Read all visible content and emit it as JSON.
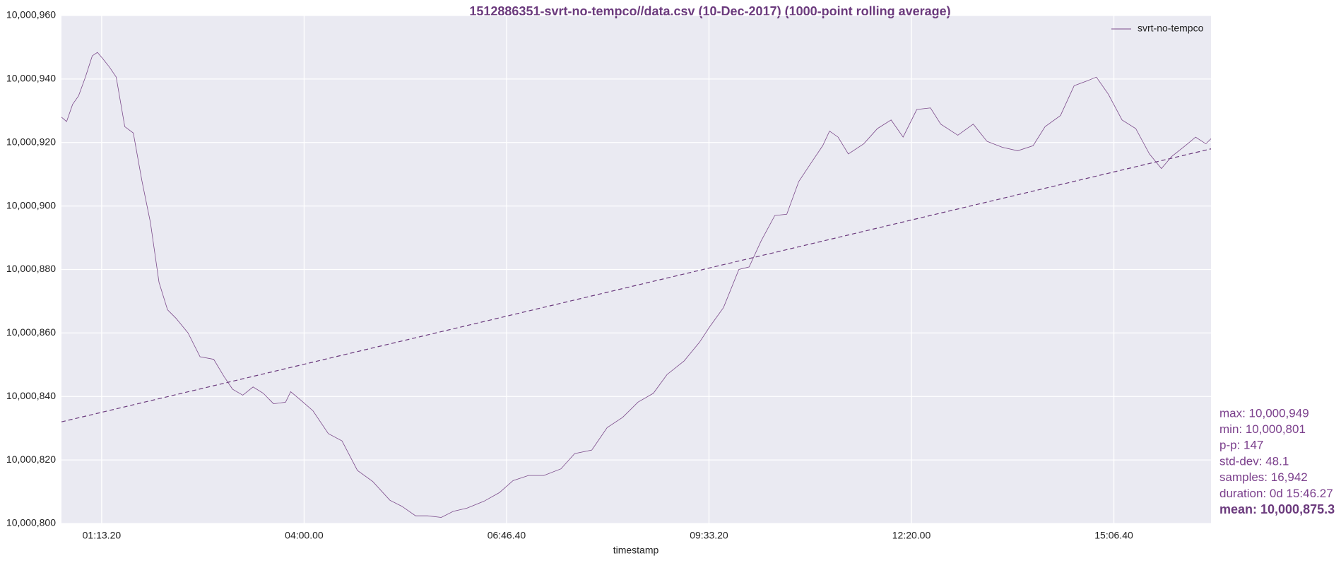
{
  "chart_data": {
    "type": "line",
    "title": "1512886351-svrt-no-tempco//data.csv (10-Dec-2017) (1000-point rolling average)",
    "x_label": "timestamp",
    "xlim": [
      2414,
      59198
    ],
    "ylim": [
      10000800,
      10000960
    ],
    "xticks": [
      {
        "value": 4400,
        "label": "01:13.20"
      },
      {
        "value": 14400,
        "label": "04:00.00"
      },
      {
        "value": 24400,
        "label": "06:46.40"
      },
      {
        "value": 34400,
        "label": "09:33.20"
      },
      {
        "value": 44400,
        "label": "12:20.00"
      },
      {
        "value": 54400,
        "label": "15:06.40"
      }
    ],
    "yticks": [
      {
        "value": 10000800,
        "label": "10,000,800"
      },
      {
        "value": 10000820,
        "label": "10,000,820"
      },
      {
        "value": 10000840,
        "label": "10,000,840"
      },
      {
        "value": 10000860,
        "label": "10,000,860"
      },
      {
        "value": 10000880,
        "label": "10,000,880"
      },
      {
        "value": 10000900,
        "label": "10,000,900"
      },
      {
        "value": 10000920,
        "label": "10,000,920"
      },
      {
        "value": 10000940,
        "label": "10,000,940"
      },
      {
        "value": 10000960,
        "label": "10,000,960"
      }
    ],
    "grid": true,
    "legend": "upper right",
    "series": [
      {
        "name": "svrt-no-tempco",
        "color": "#7b4a8a",
        "x": [
          2414,
          2668,
          2963,
          3259,
          3597,
          3935,
          4189,
          4442,
          4780,
          5118,
          5541,
          5963,
          6386,
          6808,
          7231,
          7653,
          8076,
          8667,
          9259,
          9935,
          10442,
          10864,
          11371,
          11878,
          12385,
          12892,
          13484,
          13737,
          14244,
          14836,
          15596,
          16272,
          17033,
          17793,
          18638,
          19230,
          19906,
          20497,
          21173,
          21765,
          22441,
          23286,
          24046,
          24722,
          25483,
          26243,
          27088,
          27764,
          28609,
          29370,
          30130,
          30891,
          31651,
          32327,
          33172,
          33933,
          34440,
          35116,
          35876,
          36383,
          36975,
          37651,
          38242,
          38834,
          39510,
          40017,
          40355,
          40777,
          41284,
          42045,
          42721,
          43397,
          43988,
          44664,
          45340,
          45847,
          46692,
          47453,
          48129,
          48889,
          49650,
          50410,
          51002,
          51762,
          52438,
          53030,
          53537,
          54128,
          54804,
          55480,
          56156,
          56748,
          57255,
          57931,
          58438,
          58945,
          59198
        ],
        "values": [
          10000928,
          10000926.6,
          10000932,
          10000934.7,
          10000940.6,
          10000947.3,
          10000948.4,
          10000946.5,
          10000943.8,
          10000940.6,
          10000925,
          10000923,
          10000908,
          10000894.8,
          10000876,
          10000867.3,
          10000864.6,
          10000860,
          10000852.5,
          10000851.7,
          10000846.3,
          10000842.3,
          10000840.4,
          10000843,
          10000841,
          10000837.7,
          10000838.2,
          10000841.5,
          10000838.8,
          10000835.5,
          10000828.3,
          10000826,
          10000816.7,
          10000813.2,
          10000807.3,
          10000805.4,
          10000802.4,
          10000802.4,
          10000801.9,
          10000803.8,
          10000804.8,
          10000807,
          10000809.7,
          10000813.5,
          10000815.1,
          10000815.1,
          10000817.2,
          10000822,
          10000823.1,
          10000830.2,
          10000833.4,
          10000838.2,
          10000841,
          10000846.9,
          10000851.2,
          10000857.1,
          10000862,
          10000868,
          10000880,
          10000880.8,
          10000889,
          10000897,
          10000897.4,
          10000907.7,
          10000914.2,
          10000919,
          10000923.6,
          10000921.7,
          10000916.4,
          10000919.6,
          10000924.4,
          10000927.1,
          10000921.7,
          10000930.4,
          10000930.9,
          10000925.8,
          10000922.3,
          10000925.8,
          10000920.4,
          10000918.5,
          10000917.4,
          10000919,
          10000925,
          10000928.5,
          10000937.9,
          10000939.3,
          10000940.6,
          10000935.2,
          10000927.1,
          10000924.4,
          10000916.4,
          10000911.8,
          10000915.6,
          10000919,
          10000921.7,
          10000919.6,
          10000921.2
        ]
      }
    ],
    "trend": {
      "color": "#6b3a7d",
      "x": [
        2414,
        59198
      ],
      "values": [
        10000832,
        10000918
      ]
    },
    "annotations": [
      "max: 10,000,949",
      "min: 10,000,801",
      "p-p: 147",
      "std-dev: 48.1",
      "samples: 16,942",
      "duration: 0d 15:46.27",
      "mean: 10,000,875.3"
    ]
  }
}
